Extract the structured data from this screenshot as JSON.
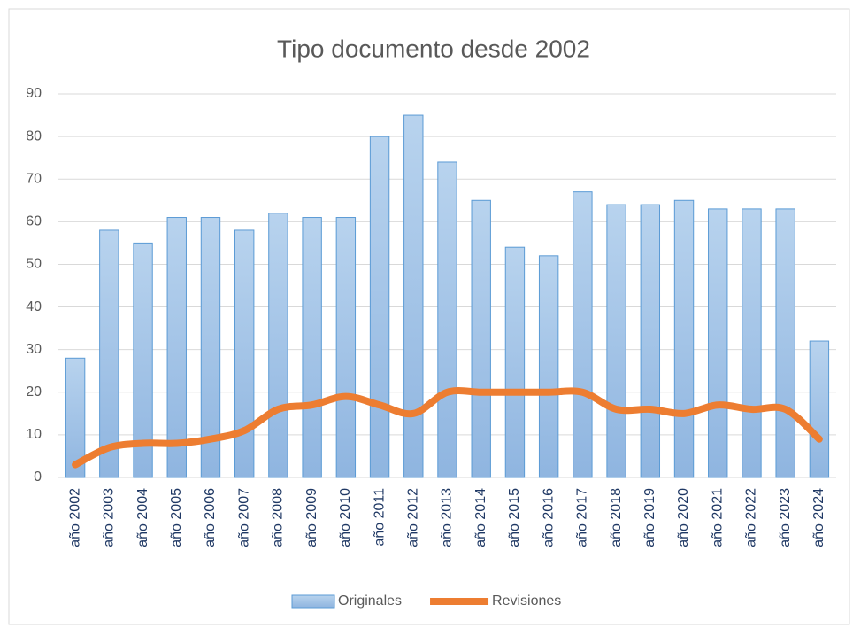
{
  "chart_data": {
    "type": "bar-line",
    "title": "Tipo documento desde 2002",
    "categories": [
      "año 2002",
      "año 2003",
      "año 2004",
      "año 2005",
      "año 2006",
      "año 2007",
      "año 2008",
      "año 2009",
      "año 2010",
      "año 2011",
      "año 2012",
      "año 2013",
      "año 2014",
      "año 2015",
      "año 2016",
      "año 2017",
      "año 2018",
      "año 2019",
      "año 2020",
      "año 2021",
      "año 2022",
      "año 2023",
      "año 2024"
    ],
    "series": [
      {
        "name": "Originales",
        "type": "bar",
        "color": "#9dc3e6",
        "values": [
          28,
          58,
          55,
          61,
          61,
          58,
          62,
          61,
          61,
          80,
          85,
          74,
          65,
          54,
          52,
          67,
          64,
          64,
          65,
          63,
          63,
          63,
          32
        ]
      },
      {
        "name": "Revisiones",
        "type": "line",
        "color": "#ed7d31",
        "values": [
          3,
          7,
          8,
          8,
          9,
          11,
          16,
          17,
          19,
          17,
          15,
          20,
          20,
          20,
          20,
          20,
          16,
          16,
          15,
          17,
          16,
          16,
          9
        ]
      }
    ],
    "ylim": [
      0,
      90
    ],
    "yticks": [
      0,
      10,
      20,
      30,
      40,
      50,
      60,
      70,
      80,
      90
    ],
    "grid": true,
    "legend": "bottom"
  }
}
